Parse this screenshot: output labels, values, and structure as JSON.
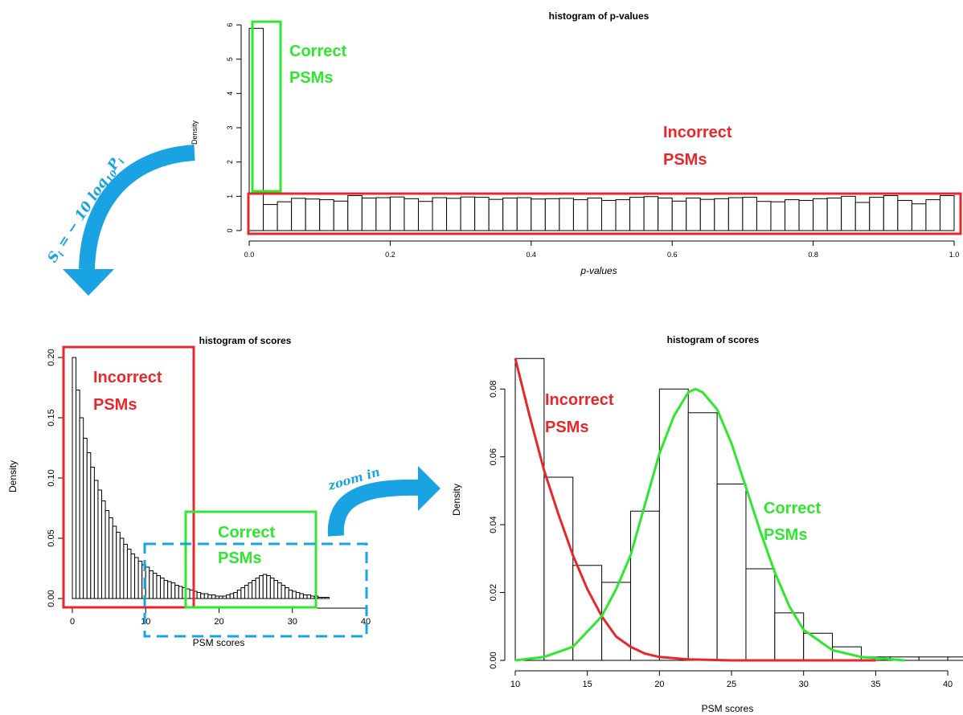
{
  "colors": {
    "incorrect": "#e8272c",
    "correct": "#2ee82e",
    "arrow": "#1aa3e3",
    "bars": "#000000"
  },
  "arrow_formula": "S_i = -10 log_10 P_i",
  "zoom_label": "zoom in",
  "chart_data": [
    {
      "id": "pvalues",
      "type": "bar",
      "title": "histogram of p-values",
      "xlabel": "p-values",
      "ylabel": "Density",
      "xlim": [
        0,
        1
      ],
      "ylim": [
        0,
        6
      ],
      "xticks": [
        "0.0",
        "0.2",
        "0.4",
        "0.6",
        "0.8",
        "1.0"
      ],
      "yticks": [
        "0",
        "1",
        "2",
        "3",
        "4",
        "5",
        "6"
      ],
      "bin_width": 0.02,
      "values": [
        5.9,
        0.76,
        0.84,
        0.94,
        0.92,
        0.9,
        0.86,
        1.02,
        0.95,
        0.96,
        0.98,
        0.93,
        0.85,
        0.96,
        0.94,
        0.98,
        0.97,
        0.91,
        0.95,
        0.96,
        0.92,
        0.93,
        0.94,
        0.9,
        0.95,
        0.88,
        0.9,
        0.97,
        0.99,
        0.95,
        0.86,
        0.95,
        0.91,
        0.93,
        0.96,
        0.97,
        0.85,
        0.84,
        0.9,
        0.88,
        0.93,
        0.95,
        1.0,
        0.82,
        0.97,
        1.02,
        0.88,
        0.78,
        0.9,
        1.02
      ],
      "annotations": [
        {
          "text": [
            "Correct",
            "PSMs"
          ],
          "color": "correct"
        },
        {
          "text": [
            "Incorrect",
            "PSMs"
          ],
          "color": "incorrect"
        }
      ]
    },
    {
      "id": "scores_full",
      "type": "bar",
      "title": "histogram of scores",
      "xlabel": "PSM scores",
      "ylabel": "Density",
      "xlim": [
        0,
        40
      ],
      "ylim": [
        0,
        0.2
      ],
      "xticks": [
        "0",
        "10",
        "20",
        "30",
        "40"
      ],
      "yticks": [
        "0.00",
        "0.05",
        "0.10",
        "0.15",
        "0.20"
      ],
      "bin_width": 0.5,
      "values": [
        0.2,
        0.173,
        0.15,
        0.133,
        0.121,
        0.109,
        0.098,
        0.09,
        0.081,
        0.073,
        0.067,
        0.06,
        0.055,
        0.05,
        0.045,
        0.041,
        0.037,
        0.034,
        0.031,
        0.028,
        0.026,
        0.023,
        0.021,
        0.019,
        0.017,
        0.015,
        0.014,
        0.013,
        0.011,
        0.01,
        0.009,
        0.008,
        0.007,
        0.006,
        0.005,
        0.004,
        0.004,
        0.003,
        0.003,
        0.002,
        0.002,
        0.002,
        0.003,
        0.004,
        0.005,
        0.007,
        0.009,
        0.011,
        0.013,
        0.015,
        0.017,
        0.019,
        0.02,
        0.019,
        0.017,
        0.015,
        0.013,
        0.011,
        0.009,
        0.007,
        0.006,
        0.005,
        0.004,
        0.003,
        0.003,
        0.002,
        0.002,
        0.001,
        0.001,
        0.001
      ],
      "annotations": [
        {
          "text": [
            "Incorrect",
            "PSMs"
          ],
          "color": "incorrect"
        },
        {
          "text": [
            "Correct",
            "PSMs"
          ],
          "color": "correct"
        }
      ]
    },
    {
      "id": "scores_zoom",
      "type": "bar",
      "title": "histogram of scores",
      "xlabel": "PSM scores",
      "ylabel": "Density",
      "xlim": [
        10,
        41
      ],
      "ylim": [
        0,
        0.09
      ],
      "xticks": [
        "10",
        "15",
        "20",
        "25",
        "30",
        "35",
        "40"
      ],
      "yticks": [
        "0.00",
        "0.02",
        "0.04",
        "0.06",
        "0.08"
      ],
      "bin_width": 2,
      "bins_start": 10,
      "values": [
        0.089,
        0.054,
        0.028,
        0.023,
        0.044,
        0.08,
        0.073,
        0.052,
        0.027,
        0.014,
        0.008,
        0.004,
        0.001,
        0.001,
        0.001,
        0.001
      ],
      "curves": [
        {
          "color": "incorrect",
          "x": [
            10,
            11,
            12,
            13,
            14,
            15,
            16,
            17,
            18,
            19,
            20,
            22,
            25,
            30,
            35
          ],
          "y": [
            0.089,
            0.072,
            0.056,
            0.043,
            0.031,
            0.021,
            0.013,
            0.007,
            0.004,
            0.002,
            0.001,
            0.0003,
            0.0,
            0.0,
            0.0
          ]
        },
        {
          "color": "correct",
          "x": [
            10,
            12,
            14,
            16,
            17,
            18,
            19,
            20,
            21,
            22,
            22.5,
            23,
            24,
            25,
            26,
            27,
            28,
            29,
            30,
            32,
            34,
            37
          ],
          "y": [
            0.0,
            0.001,
            0.004,
            0.013,
            0.021,
            0.031,
            0.046,
            0.061,
            0.072,
            0.079,
            0.08,
            0.079,
            0.074,
            0.064,
            0.051,
            0.038,
            0.026,
            0.016,
            0.009,
            0.003,
            0.001,
            0.0
          ]
        }
      ],
      "annotations": [
        {
          "text": [
            "Incorrect",
            "PSMs"
          ],
          "color": "incorrect"
        },
        {
          "text": [
            "Correct",
            "PSMs"
          ],
          "color": "correct"
        }
      ]
    }
  ]
}
